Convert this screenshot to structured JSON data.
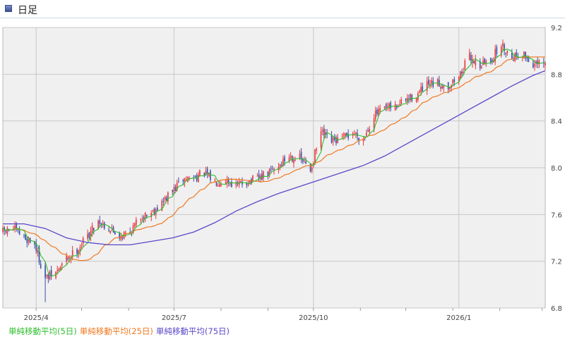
{
  "header": {
    "title": "日足"
  },
  "chart_data": {
    "type": "candlestick",
    "title": "日足",
    "ylim": [
      6.8,
      9.2
    ],
    "yticks": [
      6.8,
      7.2,
      7.6,
      8.0,
      8.4,
      8.8,
      9.2
    ],
    "ytick_labels": [
      "6.8",
      "7.2",
      "7.6",
      "8.0",
      "8.4",
      "8.8",
      "9.2"
    ],
    "xticks": [
      {
        "label": "2025/4",
        "date": "2025-04-01"
      },
      {
        "label": "2025/7",
        "date": "2025-07-01"
      },
      {
        "label": "2025/10",
        "date": "2025-10-01"
      },
      {
        "label": "2026/1",
        "date": "2026-01-05"
      }
    ],
    "x_range": [
      "2025-03-10",
      "2026-03-03"
    ],
    "grid": true,
    "legend_position": "bottom-left",
    "colors": {
      "up": "#e8383d",
      "down": "#3a4fa8",
      "grid": "#c8c8c8",
      "plot_bg": "#f0f0f0"
    },
    "close_path": [
      [
        "2025-03-10",
        7.45
      ],
      [
        "2025-03-17",
        7.48
      ],
      [
        "2025-03-24",
        7.4
      ],
      [
        "2025-03-31",
        7.35
      ],
      [
        "2025-04-07",
        7.05
      ],
      [
        "2025-04-14",
        7.1
      ],
      [
        "2025-04-21",
        7.22
      ],
      [
        "2025-04-28",
        7.3
      ],
      [
        "2025-05-05",
        7.42
      ],
      [
        "2025-05-12",
        7.55
      ],
      [
        "2025-05-19",
        7.48
      ],
      [
        "2025-05-26",
        7.42
      ],
      [
        "2025-06-02",
        7.45
      ],
      [
        "2025-06-09",
        7.58
      ],
      [
        "2025-06-16",
        7.62
      ],
      [
        "2025-06-23",
        7.7
      ],
      [
        "2025-06-30",
        7.8
      ],
      [
        "2025-07-07",
        7.9
      ],
      [
        "2025-07-14",
        7.92
      ],
      [
        "2025-07-21",
        7.95
      ],
      [
        "2025-07-28",
        7.88
      ],
      [
        "2025-08-04",
        7.9
      ],
      [
        "2025-08-11",
        7.85
      ],
      [
        "2025-08-18",
        7.88
      ],
      [
        "2025-08-25",
        7.9
      ],
      [
        "2025-09-01",
        7.95
      ],
      [
        "2025-09-08",
        8.02
      ],
      [
        "2025-09-15",
        8.1
      ],
      [
        "2025-09-22",
        8.08
      ],
      [
        "2025-09-29",
        7.98
      ],
      [
        "2025-10-06",
        8.3
      ],
      [
        "2025-10-13",
        8.22
      ],
      [
        "2025-10-20",
        8.25
      ],
      [
        "2025-10-27",
        8.3
      ],
      [
        "2025-11-03",
        8.25
      ],
      [
        "2025-11-10",
        8.45
      ],
      [
        "2025-11-17",
        8.5
      ],
      [
        "2025-11-24",
        8.52
      ],
      [
        "2025-12-01",
        8.58
      ],
      [
        "2025-12-08",
        8.62
      ],
      [
        "2025-12-15",
        8.7
      ],
      [
        "2025-12-22",
        8.72
      ],
      [
        "2025-12-29",
        8.7
      ],
      [
        "2026-01-05",
        8.78
      ],
      [
        "2026-01-12",
        8.95
      ],
      [
        "2026-01-19",
        8.88
      ],
      [
        "2026-01-26",
        8.92
      ],
      [
        "2026-02-02",
        9.05
      ],
      [
        "2026-02-09",
        8.95
      ],
      [
        "2026-02-16",
        8.98
      ],
      [
        "2026-02-23",
        8.88
      ],
      [
        "2026-03-03",
        8.88
      ]
    ],
    "sma75_path": [
      [
        "2025-03-10",
        7.52
      ],
      [
        "2025-03-24",
        7.52
      ],
      [
        "2025-04-07",
        7.48
      ],
      [
        "2025-04-21",
        7.4
      ],
      [
        "2025-05-05",
        7.36
      ],
      [
        "2025-05-19",
        7.34
      ],
      [
        "2025-06-02",
        7.34
      ],
      [
        "2025-06-16",
        7.37
      ],
      [
        "2025-06-30",
        7.4
      ],
      [
        "2025-07-14",
        7.45
      ],
      [
        "2025-07-28",
        7.53
      ],
      [
        "2025-08-11",
        7.63
      ],
      [
        "2025-08-25",
        7.71
      ],
      [
        "2025-09-08",
        7.78
      ],
      [
        "2025-09-22",
        7.84
      ],
      [
        "2025-10-06",
        7.9
      ],
      [
        "2025-10-20",
        7.96
      ],
      [
        "2025-11-03",
        8.02
      ],
      [
        "2025-11-17",
        8.1
      ],
      [
        "2025-12-01",
        8.2
      ],
      [
        "2025-12-15",
        8.3
      ],
      [
        "2025-12-29",
        8.4
      ],
      [
        "2026-01-12",
        8.5
      ],
      [
        "2026-01-26",
        8.6
      ],
      [
        "2026-02-09",
        8.7
      ],
      [
        "2026-02-23",
        8.79
      ],
      [
        "2026-03-03",
        8.83
      ]
    ],
    "legend": [
      {
        "label": "単純移動平均(5日)",
        "color": "#2fbf2f"
      },
      {
        "label": "単純移動平均(25日)",
        "color": "#f07820"
      },
      {
        "label": "単純移動平均(75日)",
        "color": "#5a48c8"
      }
    ]
  }
}
